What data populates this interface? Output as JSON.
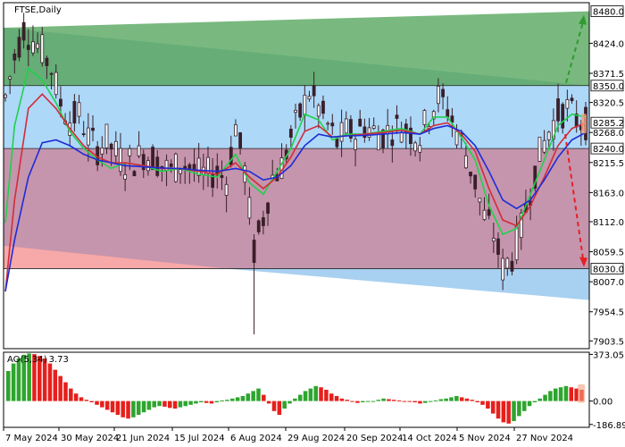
{
  "header": {
    "symbol_label": "FTSE,Daily"
  },
  "oscillator": {
    "label": "AO(5,34)",
    "value": "3.73"
  },
  "colors": {
    "resistance_zone": "#79b97f",
    "middle_zone": "#add8f8",
    "lower_zone": "#c595ad",
    "channel_lower": "#a8d0f0",
    "channel_pink": "#f7a8a8",
    "candles": "#3a1f2a",
    "ma_fast": "#1fd14a",
    "ma_mid": "#d22c39",
    "ma_slow": "#1f2ad8",
    "ao_up": "#2ea52e",
    "ao_down": "#e5201c",
    "arrow_up": "#2f9a2f",
    "arrow_down": "#e52020"
  },
  "chart_data": [
    {
      "type": "candlestick",
      "title": "FTSE,Daily",
      "x_labels": [
        "7 May 2024",
        "30 May 2024",
        "21 Jun 2024",
        "15 Jul 2024",
        "6 Aug 2024",
        "29 Aug 2024",
        "20 Sep 2024",
        "14 Oct 2024",
        "5 Nov 2024",
        "27 Nov 2024"
      ],
      "y_ticks": [
        8424.0,
        8371.5,
        8320.5,
        8268.0,
        8215.5,
        8163.0,
        8112.0,
        8059.5,
        8007.0,
        7954.5,
        7903.5
      ],
      "ylim": [
        7890,
        8495
      ],
      "levels": [
        {
          "value": 8480.0,
          "label": "8480.0"
        },
        {
          "value": 8350.0,
          "label": "8350.0"
        },
        {
          "value": 8285.2,
          "label": "8285.2"
        },
        {
          "value": 8240.0,
          "label": "8240.0"
        },
        {
          "value": 8030.0,
          "label": "8030.0"
        }
      ],
      "last_price": 8285.2,
      "target_up": 8480.0,
      "target_down": 8030.0,
      "close_path": [
        [
          0,
          8330
        ],
        [
          2,
          8400
        ],
        [
          4,
          8450
        ],
        [
          6,
          8430
        ],
        [
          8,
          8410
        ],
        [
          10,
          8380
        ],
        [
          12,
          8320
        ],
        [
          14,
          8290
        ],
        [
          16,
          8300
        ],
        [
          18,
          8260
        ],
        [
          20,
          8240
        ],
        [
          22,
          8255
        ],
        [
          24,
          8230
        ],
        [
          26,
          8215
        ],
        [
          28,
          8220
        ],
        [
          30,
          8230
        ],
        [
          32,
          8225
        ],
        [
          34,
          8210
        ],
        [
          36,
          8200
        ],
        [
          38,
          8215
        ],
        [
          40,
          8210
        ],
        [
          42,
          8195
        ],
        [
          44,
          8195
        ],
        [
          46,
          8200
        ],
        [
          48,
          8185
        ],
        [
          50,
          8280
        ],
        [
          52,
          8200
        ],
        [
          54,
          8060
        ],
        [
          56,
          8120
        ],
        [
          58,
          8190
        ],
        [
          60,
          8210
        ],
        [
          62,
          8260
        ],
        [
          64,
          8300
        ],
        [
          66,
          8340
        ],
        [
          68,
          8310
        ],
        [
          70,
          8280
        ],
        [
          72,
          8250
        ],
        [
          74,
          8270
        ],
        [
          76,
          8265
        ],
        [
          78,
          8280
        ],
        [
          80,
          8270
        ],
        [
          82,
          8265
        ],
        [
          84,
          8275
        ],
        [
          86,
          8280
        ],
        [
          88,
          8270
        ],
        [
          90,
          8260
        ],
        [
          92,
          8300
        ],
        [
          94,
          8330
        ],
        [
          96,
          8310
        ],
        [
          98,
          8270
        ],
        [
          100,
          8230
        ],
        [
          102,
          8180
        ],
        [
          104,
          8120
        ],
        [
          106,
          8090
        ],
        [
          108,
          8030
        ],
        [
          110,
          8050
        ],
        [
          112,
          8100
        ],
        [
          114,
          8170
        ],
        [
          116,
          8230
        ],
        [
          118,
          8270
        ],
        [
          120,
          8300
        ],
        [
          122,
          8310
        ],
        [
          124,
          8290
        ],
        [
          126,
          8285
        ]
      ],
      "series": [
        {
          "name": "",
          "color": "#1fd14a",
          "values": [
            [
              0,
              8110
            ],
            [
              2,
              8280
            ],
            [
              5,
              8380
            ],
            [
              8,
              8360
            ],
            [
              11,
              8320
            ],
            [
              14,
              8270
            ],
            [
              17,
              8240
            ],
            [
              20,
              8220
            ],
            [
              23,
              8205
            ],
            [
              26,
              8215
            ],
            [
              30,
              8210
            ],
            [
              34,
              8200
            ],
            [
              38,
              8205
            ],
            [
              42,
              8195
            ],
            [
              46,
              8190
            ],
            [
              50,
              8230
            ],
            [
              53,
              8180
            ],
            [
              56,
              8160
            ],
            [
              59,
              8200
            ],
            [
              62,
              8240
            ],
            [
              65,
              8300
            ],
            [
              68,
              8290
            ],
            [
              71,
              8255
            ],
            [
              74,
              8265
            ],
            [
              78,
              8265
            ],
            [
              82,
              8270
            ],
            [
              86,
              8275
            ],
            [
              90,
              8265
            ],
            [
              93,
              8295
            ],
            [
              96,
              8295
            ],
            [
              99,
              8260
            ],
            [
              102,
              8220
            ],
            [
              105,
              8140
            ],
            [
              108,
              8090
            ],
            [
              111,
              8100
            ],
            [
              114,
              8160
            ],
            [
              117,
              8220
            ],
            [
              120,
              8280
            ],
            [
              123,
              8300
            ],
            [
              126,
              8295
            ]
          ]
        },
        {
          "name": "",
          "color": "#d22c39",
          "values": [
            [
              0,
              7990
            ],
            [
              2,
              8150
            ],
            [
              5,
              8310
            ],
            [
              8,
              8335
            ],
            [
              11,
              8310
            ],
            [
              14,
              8275
            ],
            [
              17,
              8245
            ],
            [
              20,
              8225
            ],
            [
              23,
              8215
            ],
            [
              26,
              8215
            ],
            [
              30,
              8210
            ],
            [
              34,
              8205
            ],
            [
              38,
              8205
            ],
            [
              42,
              8200
            ],
            [
              46,
              8195
            ],
            [
              50,
              8215
            ],
            [
              53,
              8190
            ],
            [
              56,
              8170
            ],
            [
              59,
              8190
            ],
            [
              62,
              8225
            ],
            [
              65,
              8270
            ],
            [
              68,
              8280
            ],
            [
              71,
              8260
            ],
            [
              74,
              8262
            ],
            [
              78,
              8265
            ],
            [
              82,
              8268
            ],
            [
              86,
              8272
            ],
            [
              90,
              8265
            ],
            [
              93,
              8280
            ],
            [
              96,
              8285
            ],
            [
              99,
              8265
            ],
            [
              102,
              8235
            ],
            [
              105,
              8170
            ],
            [
              108,
              8115
            ],
            [
              111,
              8105
            ],
            [
              114,
              8140
            ],
            [
              117,
              8190
            ],
            [
              120,
              8245
            ],
            [
              123,
              8275
            ],
            [
              126,
              8285
            ]
          ]
        },
        {
          "name": "",
          "color": "#1f2ad8",
          "values": [
            [
              0,
              7990
            ],
            [
              2,
              8080
            ],
            [
              5,
              8190
            ],
            [
              8,
              8250
            ],
            [
              11,
              8255
            ],
            [
              14,
              8245
            ],
            [
              17,
              8230
            ],
            [
              20,
              8220
            ],
            [
              23,
              8215
            ],
            [
              26,
              8210
            ],
            [
              30,
              8208
            ],
            [
              34,
              8206
            ],
            [
              38,
              8205
            ],
            [
              42,
              8202
            ],
            [
              46,
              8200
            ],
            [
              50,
              8205
            ],
            [
              53,
              8200
            ],
            [
              56,
              8185
            ],
            [
              59,
              8190
            ],
            [
              62,
              8210
            ],
            [
              65,
              8245
            ],
            [
              68,
              8265
            ],
            [
              71,
              8260
            ],
            [
              74,
              8262
            ],
            [
              78,
              8263
            ],
            [
              82,
              8265
            ],
            [
              86,
              8268
            ],
            [
              90,
              8265
            ],
            [
              93,
              8275
            ],
            [
              96,
              8280
            ],
            [
              99,
              8270
            ],
            [
              102,
              8245
            ],
            [
              105,
              8200
            ],
            [
              108,
              8150
            ],
            [
              111,
              8135
            ],
            [
              114,
              8150
            ],
            [
              117,
              8185
            ],
            [
              120,
              8225
            ],
            [
              123,
              8255
            ],
            [
              126,
              8268
            ]
          ]
        }
      ]
    },
    {
      "type": "bar",
      "title": "AO(5,34) 3.73",
      "y_ticks": [
        373.05,
        0.0,
        -186.89
      ],
      "y_tick_labels": [
        "373.05",
        "0.00",
        "-186.89"
      ],
      "ylim": [
        -210,
        390
      ],
      "values": [
        240,
        300,
        340,
        370,
        380,
        375,
        360,
        340,
        300,
        250,
        200,
        150,
        100,
        60,
        30,
        10,
        -10,
        -30,
        -50,
        -70,
        -90,
        -110,
        -130,
        -140,
        -130,
        -110,
        -90,
        -70,
        -50,
        -40,
        -45,
        -55,
        -60,
        -50,
        -40,
        -30,
        -20,
        -10,
        -15,
        -20,
        -10,
        5,
        10,
        20,
        30,
        40,
        60,
        80,
        100,
        50,
        -20,
        -80,
        -110,
        -60,
        -20,
        20,
        50,
        80,
        100,
        120,
        110,
        90,
        60,
        40,
        20,
        10,
        -5,
        -15,
        -10,
        -5,
        0,
        10,
        20,
        15,
        10,
        5,
        0,
        -5,
        -10,
        -20,
        -15,
        -5,
        5,
        15,
        20,
        30,
        40,
        30,
        20,
        10,
        -10,
        -30,
        -60,
        -100,
        -140,
        -170,
        -180,
        -160,
        -120,
        -80,
        -40,
        -10,
        20,
        50,
        80,
        100,
        110,
        120,
        110,
        100,
        90
      ]
    }
  ]
}
